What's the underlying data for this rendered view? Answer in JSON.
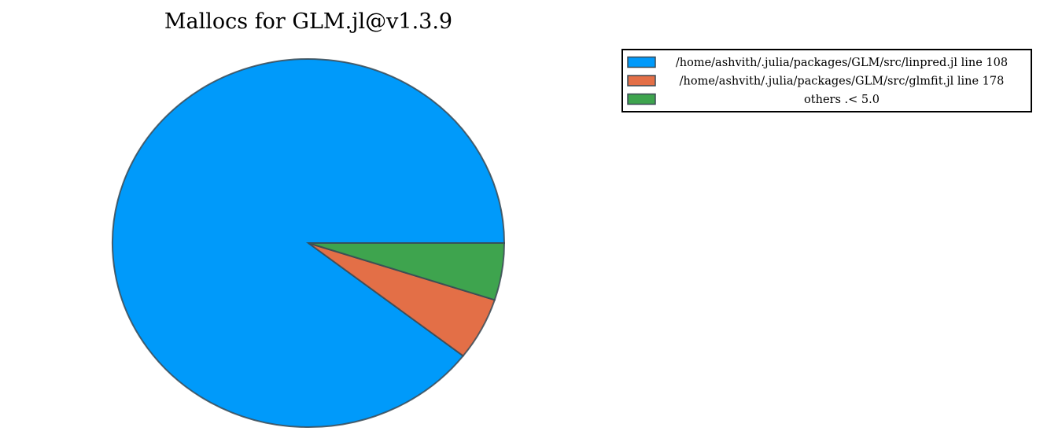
{
  "chart_data": {
    "type": "pie",
    "title": "Mallocs for GLM.jl@v1.3.9",
    "slices": [
      {
        "label": "/home/ashvith/.julia/packages/GLM/src/linpred.jl line 108",
        "value": 89.5,
        "color": "#009AFA"
      },
      {
        "label": "/home/ashvith/.julia/packages/GLM/src/glmfit.jl line 178",
        "value": 5.5,
        "color": "#E36F47"
      },
      {
        "label": "others .< 5.0",
        "value": 5.0,
        "color": "#3EA44E"
      }
    ],
    "legend_position": "top-right"
  }
}
